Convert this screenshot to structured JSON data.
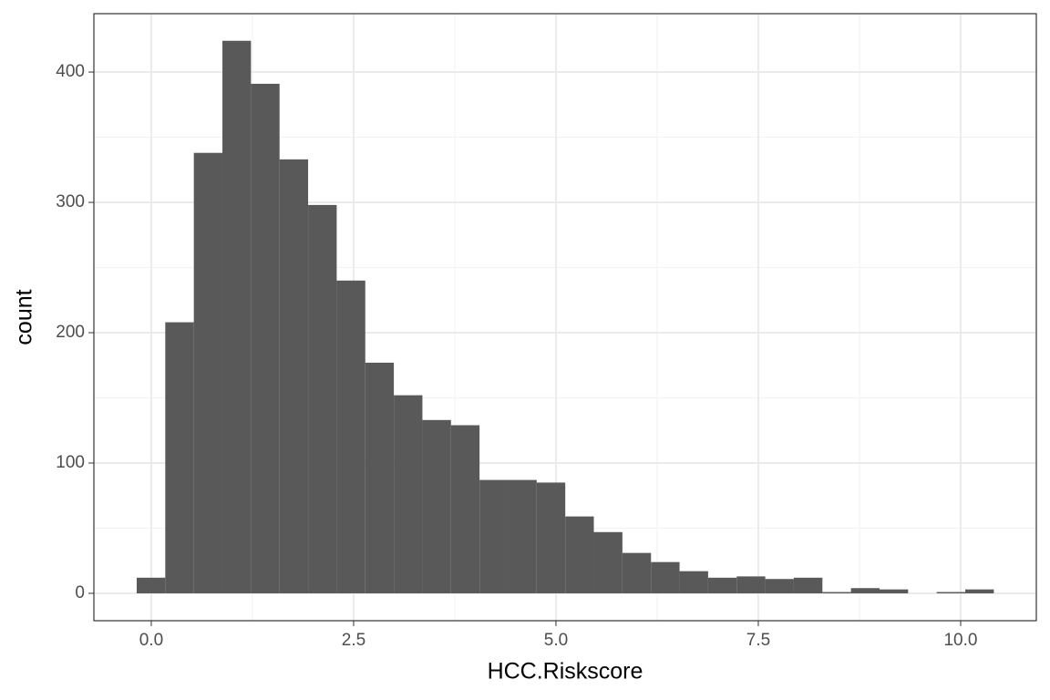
{
  "chart_data": {
    "type": "histogram",
    "x_label": "HCC.Riskscore",
    "y_label": "count",
    "bins": [
      -0.18,
      0.173,
      0.526,
      0.879,
      1.232,
      1.585,
      1.938,
      2.291,
      2.644,
      2.997,
      3.35,
      3.703,
      4.056,
      4.409,
      4.762,
      5.115,
      5.468,
      5.821,
      6.174,
      6.527,
      6.88,
      7.233,
      7.586,
      7.939,
      8.292,
      8.645,
      8.998,
      9.351,
      9.704,
      10.057,
      10.41
    ],
    "values": [
      12,
      208,
      338,
      424,
      391,
      333,
      298,
      240,
      177,
      152,
      133,
      129,
      87,
      87,
      85,
      59,
      47,
      31,
      24,
      17,
      12,
      13,
      11,
      12,
      1,
      4,
      3,
      0,
      1,
      3
    ],
    "color": "#595959",
    "xlim": [
      -0.709,
      10.935
    ],
    "ylim": [
      -21,
      444.8
    ],
    "xticks": [
      {
        "value": 0,
        "label": "0.0"
      },
      {
        "value": 2.5,
        "label": "2.5"
      },
      {
        "value": 5,
        "label": "5.0"
      },
      {
        "value": 7.5,
        "label": "7.5"
      },
      {
        "value": 10,
        "label": "10.0"
      }
    ],
    "yticks": [
      0,
      100,
      200,
      300,
      400
    ],
    "grid": true
  }
}
